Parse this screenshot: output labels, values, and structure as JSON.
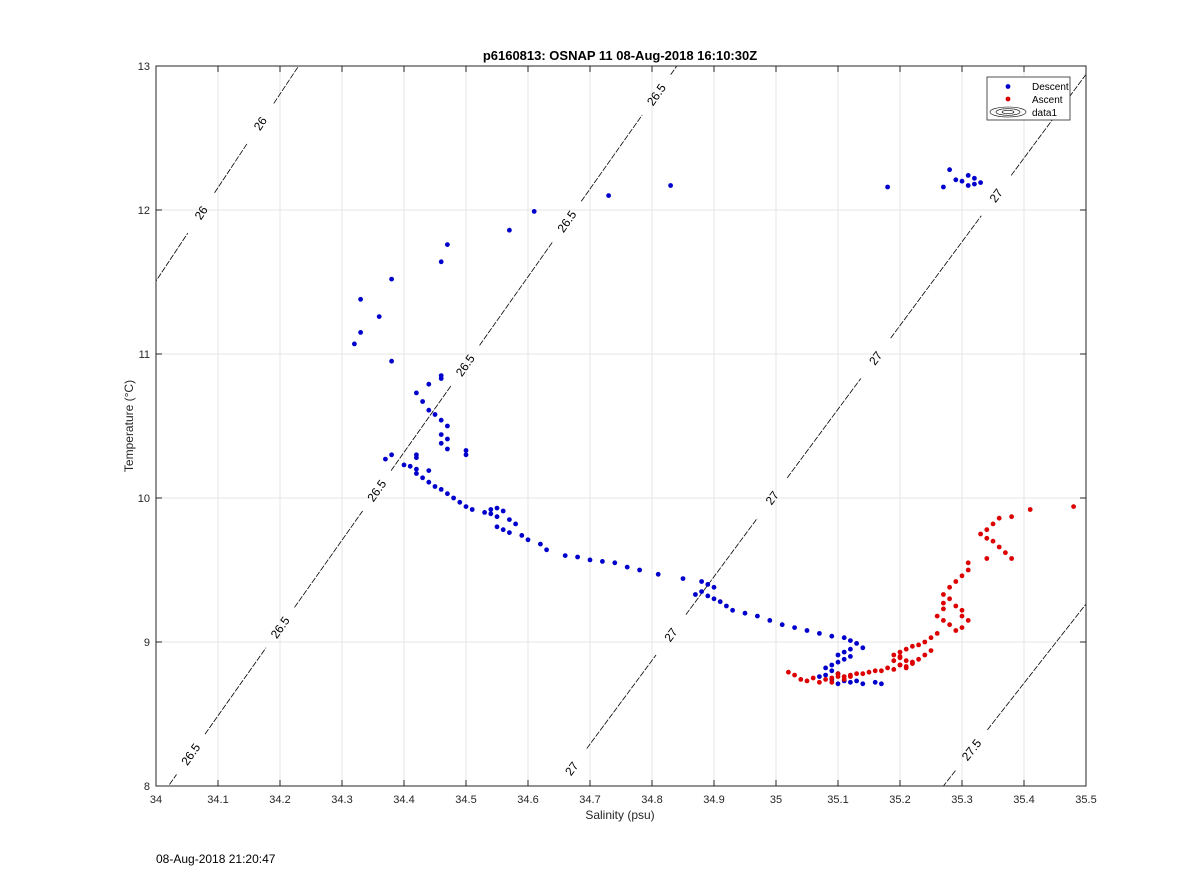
{
  "footer": {
    "timestamp": "08-Aug-2018 21:20:47"
  },
  "colors": {
    "descent": "#0000cc",
    "ascent": "#dd0000",
    "grid": "#e6e6e6",
    "axis": "#262626",
    "contour": "#000000"
  },
  "chart_data": {
    "type": "scatter",
    "title": "p6160813: OSNAP 11 08-Aug-2018 16:10:30Z",
    "xlabel": "Salinity (psu)",
    "ylabel": "Temperature (°C)",
    "xlim": [
      34,
      35.5
    ],
    "ylim": [
      8,
      13
    ],
    "grid": true,
    "legend_position": "top-right",
    "x_ticks": [
      "34",
      "34.1",
      "34.2",
      "34.3",
      "34.4",
      "34.5",
      "34.6",
      "34.7",
      "34.8",
      "34.9",
      "35",
      "35.1",
      "35.2",
      "35.3",
      "35.4",
      "35.5"
    ],
    "y_ticks": [
      "8",
      "9",
      "10",
      "11",
      "12",
      "13"
    ],
    "legend": [
      "Descent",
      "Ascent",
      "data1"
    ],
    "contours": [
      {
        "level": "26",
        "s_at_t8": 33.46,
        "slope": 0.154,
        "labels_at_t": [
          12.6,
          11.98,
          10.95
        ]
      },
      {
        "level": "26.5",
        "s_at_t8": 34.02,
        "slope": 0.164,
        "labels_at_t": [
          12.8,
          11.92,
          10.92,
          10.05,
          9.1,
          8.22
        ]
      },
      {
        "level": "27",
        "s_at_t8": 34.65,
        "slope": 0.172,
        "labels_at_t": [
          12.1,
          10.97,
          10.0,
          9.05,
          8.12
        ]
      },
      {
        "level": "27.5",
        "s_at_t8": 35.27,
        "slope": 0.182,
        "labels_at_t": [
          8.25
        ]
      }
    ],
    "series": [
      {
        "name": "Descent",
        "color": "#0000cc",
        "points": [
          [
            35.28,
            12.28
          ],
          [
            35.31,
            12.24
          ],
          [
            35.3,
            12.2
          ],
          [
            35.32,
            12.22
          ],
          [
            35.33,
            12.19
          ],
          [
            35.31,
            12.17
          ],
          [
            35.32,
            12.18
          ],
          [
            35.27,
            12.16
          ],
          [
            35.29,
            12.21
          ],
          [
            35.18,
            12.16
          ],
          [
            34.83,
            12.17
          ],
          [
            34.73,
            12.1
          ],
          [
            34.61,
            11.99
          ],
          [
            34.57,
            11.86
          ],
          [
            34.47,
            11.76
          ],
          [
            34.46,
            11.64
          ],
          [
            34.38,
            11.52
          ],
          [
            34.33,
            11.38
          ],
          [
            34.36,
            11.26
          ],
          [
            34.33,
            11.15
          ],
          [
            34.32,
            11.07
          ],
          [
            34.38,
            10.95
          ],
          [
            34.46,
            10.85
          ],
          [
            34.46,
            10.83
          ],
          [
            34.44,
            10.79
          ],
          [
            34.42,
            10.73
          ],
          [
            34.43,
            10.67
          ],
          [
            34.44,
            10.61
          ],
          [
            34.45,
            10.58
          ],
          [
            34.46,
            10.54
          ],
          [
            34.47,
            10.5
          ],
          [
            34.46,
            10.44
          ],
          [
            34.47,
            10.41
          ],
          [
            34.46,
            10.38
          ],
          [
            34.47,
            10.34
          ],
          [
            34.5,
            10.33
          ],
          [
            34.5,
            10.3
          ],
          [
            34.42,
            10.3
          ],
          [
            34.42,
            10.28
          ],
          [
            34.38,
            10.3
          ],
          [
            34.37,
            10.27
          ],
          [
            34.4,
            10.23
          ],
          [
            34.41,
            10.22
          ],
          [
            34.42,
            10.2
          ],
          [
            34.44,
            10.19
          ],
          [
            34.42,
            10.17
          ],
          [
            34.43,
            10.14
          ],
          [
            34.44,
            10.11
          ],
          [
            34.45,
            10.08
          ],
          [
            34.46,
            10.06
          ],
          [
            34.47,
            10.03
          ],
          [
            34.48,
            10.0
          ],
          [
            34.49,
            9.97
          ],
          [
            34.5,
            9.94
          ],
          [
            34.51,
            9.92
          ],
          [
            34.53,
            9.9
          ],
          [
            34.54,
            9.89
          ],
          [
            34.54,
            9.92
          ],
          [
            34.55,
            9.93
          ],
          [
            34.56,
            9.91
          ],
          [
            34.55,
            9.87
          ],
          [
            34.57,
            9.85
          ],
          [
            34.58,
            9.82
          ],
          [
            34.55,
            9.8
          ],
          [
            34.56,
            9.78
          ],
          [
            34.57,
            9.76
          ],
          [
            34.59,
            9.74
          ],
          [
            34.6,
            9.71
          ],
          [
            34.62,
            9.68
          ],
          [
            34.63,
            9.64
          ],
          [
            34.66,
            9.6
          ],
          [
            34.68,
            9.59
          ],
          [
            34.7,
            9.57
          ],
          [
            34.72,
            9.56
          ],
          [
            34.74,
            9.55
          ],
          [
            34.76,
            9.52
          ],
          [
            34.78,
            9.5
          ],
          [
            34.81,
            9.47
          ],
          [
            34.85,
            9.44
          ],
          [
            34.88,
            9.42
          ],
          [
            34.89,
            9.4
          ],
          [
            34.9,
            9.38
          ],
          [
            34.88,
            9.35
          ],
          [
            34.87,
            9.33
          ],
          [
            34.89,
            9.32
          ],
          [
            34.9,
            9.3
          ],
          [
            34.91,
            9.28
          ],
          [
            34.92,
            9.25
          ],
          [
            34.93,
            9.22
          ],
          [
            34.95,
            9.2
          ],
          [
            34.97,
            9.18
          ],
          [
            34.99,
            9.15
          ],
          [
            35.01,
            9.12
          ],
          [
            35.03,
            9.1
          ],
          [
            35.05,
            9.08
          ],
          [
            35.07,
            9.06
          ],
          [
            35.09,
            9.04
          ],
          [
            35.11,
            9.03
          ],
          [
            35.12,
            9.01
          ],
          [
            35.13,
            8.99
          ],
          [
            35.14,
            8.96
          ],
          [
            35.12,
            8.95
          ],
          [
            35.11,
            8.93
          ],
          [
            35.1,
            8.91
          ],
          [
            35.12,
            8.9
          ],
          [
            35.11,
            8.88
          ],
          [
            35.1,
            8.86
          ],
          [
            35.09,
            8.84
          ],
          [
            35.08,
            8.82
          ],
          [
            35.09,
            8.8
          ],
          [
            35.1,
            8.78
          ],
          [
            35.08,
            8.77
          ],
          [
            35.07,
            8.76
          ],
          [
            35.09,
            8.74
          ],
          [
            35.11,
            8.73
          ],
          [
            35.12,
            8.72
          ],
          [
            35.1,
            8.71
          ],
          [
            35.13,
            8.73
          ],
          [
            35.14,
            8.71
          ],
          [
            35.16,
            8.72
          ],
          [
            35.17,
            8.71
          ]
        ]
      },
      {
        "name": "Ascent",
        "color": "#dd0000",
        "points": [
          [
            35.48,
            9.94
          ],
          [
            35.41,
            9.92
          ],
          [
            35.38,
            9.87
          ],
          [
            35.36,
            9.86
          ],
          [
            35.35,
            9.82
          ],
          [
            35.34,
            9.78
          ],
          [
            35.33,
            9.75
          ],
          [
            35.34,
            9.72
          ],
          [
            35.35,
            9.7
          ],
          [
            35.36,
            9.66
          ],
          [
            35.37,
            9.62
          ],
          [
            35.38,
            9.58
          ],
          [
            35.34,
            9.58
          ],
          [
            35.31,
            9.55
          ],
          [
            35.31,
            9.5
          ],
          [
            35.3,
            9.46
          ],
          [
            35.29,
            9.42
          ],
          [
            35.28,
            9.38
          ],
          [
            35.27,
            9.33
          ],
          [
            35.28,
            9.3
          ],
          [
            35.27,
            9.27
          ],
          [
            35.27,
            9.23
          ],
          [
            35.26,
            9.18
          ],
          [
            35.27,
            9.15
          ],
          [
            35.28,
            9.12
          ],
          [
            35.29,
            9.08
          ],
          [
            35.3,
            9.1
          ],
          [
            35.31,
            9.15
          ],
          [
            35.3,
            9.18
          ],
          [
            35.3,
            9.22
          ],
          [
            35.29,
            9.25
          ],
          [
            35.26,
            9.06
          ],
          [
            35.25,
            9.03
          ],
          [
            35.24,
            9.0
          ],
          [
            35.23,
            8.98
          ],
          [
            35.22,
            8.97
          ],
          [
            35.21,
            8.95
          ],
          [
            35.2,
            8.93
          ],
          [
            35.19,
            8.91
          ],
          [
            35.2,
            8.89
          ],
          [
            35.21,
            8.87
          ],
          [
            35.22,
            8.86
          ],
          [
            35.2,
            8.84
          ],
          [
            35.21,
            8.83
          ],
          [
            35.22,
            8.85
          ],
          [
            35.21,
            8.82
          ],
          [
            35.19,
            8.81
          ],
          [
            35.17,
            8.8
          ],
          [
            35.15,
            8.79
          ],
          [
            35.13,
            8.78
          ],
          [
            35.12,
            8.77
          ],
          [
            35.11,
            8.76
          ],
          [
            35.1,
            8.76
          ],
          [
            35.09,
            8.75
          ],
          [
            35.11,
            8.74
          ],
          [
            35.12,
            8.76
          ],
          [
            35.1,
            8.78
          ],
          [
            35.08,
            8.74
          ],
          [
            35.06,
            8.75
          ],
          [
            35.04,
            8.74
          ],
          [
            35.02,
            8.79
          ],
          [
            35.03,
            8.77
          ],
          [
            35.05,
            8.73
          ],
          [
            35.07,
            8.72
          ],
          [
            35.09,
            8.72
          ],
          [
            35.14,
            8.78
          ],
          [
            35.16,
            8.8
          ],
          [
            35.18,
            8.82
          ],
          [
            35.2,
            8.84
          ],
          [
            35.22,
            8.86
          ],
          [
            35.23,
            8.88
          ],
          [
            35.24,
            8.91
          ],
          [
            35.25,
            8.94
          ],
          [
            35.19,
            8.87
          ],
          [
            35.2,
            8.9
          ]
        ]
      }
    ]
  }
}
